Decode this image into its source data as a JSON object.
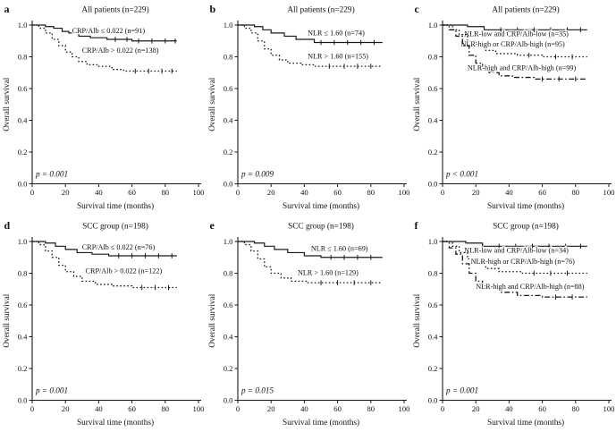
{
  "figure": {
    "background": "#ffffff",
    "line_color": "#1a1a1a"
  },
  "chart_data": [
    {
      "panel_letter": "a",
      "type": "line",
      "chart_kind": "kaplan-meier-step",
      "title": "All patients (n=229)",
      "xlabel": "Survival time (months)",
      "ylabel": "Overall survival",
      "xlim": [
        0,
        100
      ],
      "ylim": [
        0,
        1
      ],
      "xticks": [
        0,
        20,
        40,
        60,
        80,
        100
      ],
      "yticks": [
        0,
        0.2,
        0.4,
        0.6,
        0.8,
        1
      ],
      "grid": false,
      "p_value": "p = 0.001",
      "series": [
        {
          "name": "CRP/Alb ≤ 0.022 (n=91)",
          "line_style": "solid",
          "label_pos": [
            24,
            0.95
          ],
          "x": [
            0,
            8,
            13,
            18,
            22,
            28,
            35,
            45,
            60,
            87
          ],
          "y": [
            1.0,
            0.99,
            0.98,
            0.96,
            0.95,
            0.93,
            0.92,
            0.91,
            0.9,
            0.9
          ],
          "censor_x": [
            50,
            57,
            64,
            72,
            80,
            86
          ]
        },
        {
          "name": "CRP/Alb > 0.022 (n=138)",
          "line_style": "dotted",
          "label_pos": [
            30,
            0.825
          ],
          "x": [
            0,
            4,
            8,
            12,
            16,
            20,
            24,
            28,
            33,
            40,
            48,
            55,
            87
          ],
          "y": [
            1.0,
            0.98,
            0.95,
            0.91,
            0.87,
            0.83,
            0.8,
            0.77,
            0.75,
            0.74,
            0.72,
            0.71,
            0.71
          ],
          "censor_x": [
            62,
            70,
            78,
            84
          ]
        }
      ]
    },
    {
      "panel_letter": "b",
      "type": "line",
      "chart_kind": "kaplan-meier-step",
      "title": "All patients (n=229)",
      "xlabel": "Survival time (months)",
      "ylabel": "Overall survival",
      "xlim": [
        0,
        100
      ],
      "ylim": [
        0,
        1
      ],
      "xticks": [
        0,
        20,
        40,
        60,
        80,
        100
      ],
      "yticks": [
        0,
        0.2,
        0.4,
        0.6,
        0.8,
        1
      ],
      "grid": false,
      "p_value": "p = 0.009",
      "series": [
        {
          "name": "NLR ≤ 1.60 (n=74)",
          "line_style": "solid",
          "label_pos": [
            42,
            0.935
          ],
          "x": [
            0,
            10,
            15,
            20,
            28,
            35,
            46,
            87
          ],
          "y": [
            1.0,
            0.99,
            0.97,
            0.95,
            0.93,
            0.91,
            0.89,
            0.89
          ],
          "censor_x": [
            50,
            58,
            66,
            74,
            82
          ]
        },
        {
          "name": "NLR > 1.60 (n=155)",
          "line_style": "dotted",
          "label_pos": [
            42,
            0.79
          ],
          "x": [
            0,
            4,
            8,
            12,
            16,
            20,
            25,
            30,
            38,
            46,
            87
          ],
          "y": [
            1.0,
            0.98,
            0.95,
            0.9,
            0.85,
            0.81,
            0.78,
            0.76,
            0.75,
            0.74,
            0.74
          ],
          "censor_x": [
            55,
            64,
            72,
            80
          ]
        }
      ]
    },
    {
      "panel_letter": "c",
      "type": "line",
      "chart_kind": "kaplan-meier-step",
      "title": "All patients (n=229)",
      "xlabel": "Survival time (months)",
      "ylabel": "Overall survival",
      "xlim": [
        0,
        100
      ],
      "ylim": [
        0,
        1
      ],
      "xticks": [
        0,
        20,
        40,
        60,
        80,
        100
      ],
      "yticks": [
        0,
        0.2,
        0.4,
        0.6,
        0.8,
        1
      ],
      "grid": false,
      "p_value": "p < 0.001",
      "series": [
        {
          "name": "NLR-low and CRP/Alb-low (n=35)",
          "line_style": "solid",
          "label_pos": [
            13,
            0.93
          ],
          "x": [
            0,
            15,
            25,
            87
          ],
          "y": [
            1.0,
            0.99,
            0.97,
            0.97
          ],
          "censor_x": [
            35,
            45,
            55,
            65,
            75,
            83
          ]
        },
        {
          "name": "NLR-high or CRP/Alb-high (n=95)",
          "line_style": "dotted",
          "label_pos": [
            11,
            0.865
          ],
          "x": [
            0,
            6,
            10,
            15,
            20,
            26,
            32,
            45,
            60,
            87
          ],
          "y": [
            1.0,
            0.97,
            0.94,
            0.9,
            0.86,
            0.84,
            0.82,
            0.81,
            0.8,
            0.8
          ],
          "censor_x": [
            52,
            68,
            78
          ]
        },
        {
          "name": "NLR-high and CRP/Alb-high (n=99)",
          "line_style": "dashdot",
          "label_pos": [
            15,
            0.715
          ],
          "x": [
            0,
            4,
            8,
            12,
            16,
            20,
            24,
            28,
            34,
            42,
            55,
            87
          ],
          "y": [
            1.0,
            0.97,
            0.93,
            0.87,
            0.81,
            0.76,
            0.72,
            0.7,
            0.68,
            0.67,
            0.66,
            0.66
          ],
          "censor_x": [
            60,
            70,
            80
          ]
        }
      ]
    },
    {
      "panel_letter": "d",
      "type": "line",
      "chart_kind": "kaplan-meier-step",
      "title": "SCC group (n=198)",
      "xlabel": "Survival time (months)",
      "ylabel": "Overall survival",
      "xlim": [
        0,
        100
      ],
      "ylim": [
        0,
        1
      ],
      "xticks": [
        0,
        20,
        40,
        60,
        80,
        100
      ],
      "yticks": [
        0,
        0.2,
        0.4,
        0.6,
        0.8,
        1
      ],
      "grid": false,
      "p_value": "p = 0.001",
      "series": [
        {
          "name": "CRP/Alb ≤ 0.022 (n=76)",
          "line_style": "solid",
          "label_pos": [
            30,
            0.95
          ],
          "x": [
            0,
            8,
            14,
            20,
            27,
            36,
            46,
            87
          ],
          "y": [
            1.0,
            0.99,
            0.97,
            0.95,
            0.93,
            0.92,
            0.91,
            0.91
          ],
          "censor_x": [
            52,
            60,
            68,
            76,
            84
          ]
        },
        {
          "name": "CRP/Alb > 0.022 (n=122)",
          "line_style": "dotted",
          "label_pos": [
            32,
            0.8
          ],
          "x": [
            0,
            4,
            8,
            12,
            16,
            20,
            25,
            30,
            38,
            48,
            60,
            87
          ],
          "y": [
            1.0,
            0.98,
            0.94,
            0.9,
            0.85,
            0.81,
            0.78,
            0.75,
            0.73,
            0.72,
            0.71,
            0.71
          ],
          "censor_x": [
            66,
            74,
            82
          ]
        }
      ]
    },
    {
      "panel_letter": "e",
      "type": "line",
      "chart_kind": "kaplan-meier-step",
      "title": "SCC group (n=198)",
      "xlabel": "Survival time (months)",
      "ylabel": "Overall survival",
      "xlim": [
        0,
        100
      ],
      "ylim": [
        0,
        1
      ],
      "xticks": [
        0,
        20,
        40,
        60,
        80,
        100
      ],
      "yticks": [
        0,
        0.2,
        0.4,
        0.6,
        0.8,
        1
      ],
      "grid": false,
      "p_value": "p = 0.015",
      "series": [
        {
          "name": "NLR ≤ 1.60 (n=69)",
          "line_style": "solid",
          "label_pos": [
            44,
            0.94
          ],
          "x": [
            0,
            10,
            16,
            22,
            30,
            40,
            50,
            87
          ],
          "y": [
            1.0,
            0.99,
            0.97,
            0.95,
            0.93,
            0.91,
            0.9,
            0.9
          ],
          "censor_x": [
            56,
            64,
            72,
            80
          ]
        },
        {
          "name": "NLR > 1.60 (n=129)",
          "line_style": "dotted",
          "label_pos": [
            36,
            0.79
          ],
          "x": [
            0,
            4,
            8,
            12,
            16,
            20,
            26,
            32,
            42,
            87
          ],
          "y": [
            1.0,
            0.98,
            0.94,
            0.89,
            0.84,
            0.8,
            0.77,
            0.75,
            0.74,
            0.74
          ],
          "censor_x": [
            50,
            60,
            70,
            80
          ]
        }
      ]
    },
    {
      "panel_letter": "f",
      "type": "line",
      "chart_kind": "kaplan-meier-step",
      "title": "SCC group (n=198)",
      "xlabel": "Survival time (months)",
      "ylabel": "Overall survival",
      "xlim": [
        0,
        100
      ],
      "ylim": [
        0,
        1
      ],
      "xticks": [
        0,
        20,
        40,
        60,
        80,
        100
      ],
      "yticks": [
        0,
        0.2,
        0.4,
        0.6,
        0.8,
        1
      ],
      "grid": false,
      "p_value": "p = 0.001",
      "series": [
        {
          "name": "NLR-low and CRP/Alb-low (n=34)",
          "line_style": "solid",
          "label_pos": [
            13,
            0.93
          ],
          "x": [
            0,
            14,
            24,
            87
          ],
          "y": [
            1.0,
            0.99,
            0.97,
            0.97
          ],
          "censor_x": [
            34,
            44,
            54,
            64,
            74,
            83
          ]
        },
        {
          "name": "NLR-high or CRP/Alb-high (n=76)",
          "line_style": "dotted",
          "label_pos": [
            17,
            0.86
          ],
          "x": [
            0,
            6,
            10,
            15,
            20,
            26,
            34,
            48,
            87
          ],
          "y": [
            1.0,
            0.97,
            0.93,
            0.89,
            0.86,
            0.83,
            0.81,
            0.8,
            0.8
          ],
          "censor_x": [
            55,
            65,
            75
          ]
        },
        {
          "name": "NLR-high and CRP/Alb-high (n=88)",
          "line_style": "dashdot",
          "label_pos": [
            20,
            0.7
          ],
          "x": [
            0,
            4,
            8,
            12,
            16,
            20,
            24,
            28,
            35,
            45,
            60,
            87
          ],
          "y": [
            1.0,
            0.96,
            0.92,
            0.86,
            0.8,
            0.75,
            0.72,
            0.7,
            0.68,
            0.66,
            0.65,
            0.65
          ],
          "censor_x": [
            68,
            78
          ]
        }
      ]
    }
  ]
}
